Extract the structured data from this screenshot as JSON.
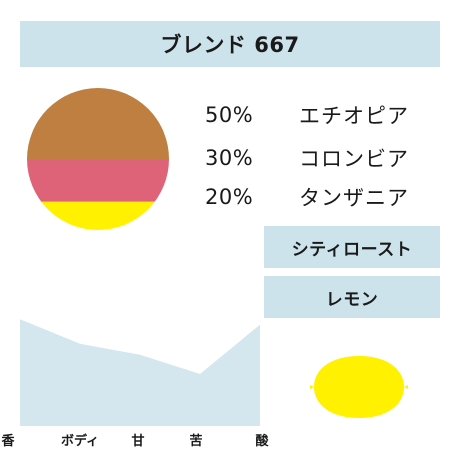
{
  "header": {
    "title": "ブレンド 667"
  },
  "blend": {
    "rows": [
      {
        "percent_label": "50%",
        "origin": "エチオピア",
        "share": 50,
        "color": "#bf7f41"
      },
      {
        "percent_label": "30%",
        "origin": "コロンビア",
        "share": 30,
        "color": "#df6378"
      },
      {
        "percent_label": "20%",
        "origin": "タンザニア",
        "share": 20,
        "color": "#fff100"
      }
    ]
  },
  "roast": {
    "label": "シティロースト"
  },
  "flavor_note": {
    "label": "レモン",
    "icon": "lemon-icon",
    "color": "#fff100"
  },
  "chart_data": {
    "type": "area",
    "categories": [
      "香",
      "ボディ",
      "甘",
      "苦",
      "酸"
    ],
    "values": [
      3.9,
      3.0,
      2.6,
      1.9,
      3.7
    ],
    "ylim": [
      0,
      4.6
    ],
    "fill_color": "#d4e6ee",
    "grid": false
  }
}
